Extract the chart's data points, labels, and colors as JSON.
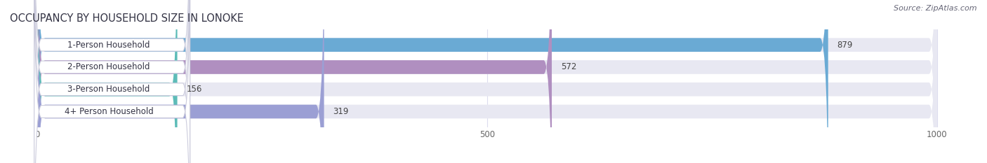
{
  "title": "OCCUPANCY BY HOUSEHOLD SIZE IN LONOKE",
  "source": "Source: ZipAtlas.com",
  "categories": [
    "1-Person Household",
    "2-Person Household",
    "3-Person Household",
    "4+ Person Household"
  ],
  "values": [
    879,
    572,
    156,
    319
  ],
  "bar_colors": [
    "#6aaad4",
    "#b08fc0",
    "#5dbcb8",
    "#9b9fd4"
  ],
  "xlim_min": -30,
  "xlim_max": 1050,
  "data_max": 1000,
  "xticks": [
    0,
    500,
    1000
  ],
  "background_color": "#ffffff",
  "bar_bg_color": "#e8e8f2",
  "label_bg_color": "#ffffff",
  "title_fontsize": 10.5,
  "label_fontsize": 8.5,
  "value_fontsize": 8.5,
  "source_fontsize": 8,
  "title_color": "#333344",
  "label_color": "#333344",
  "value_color": "#444444",
  "source_color": "#666677"
}
